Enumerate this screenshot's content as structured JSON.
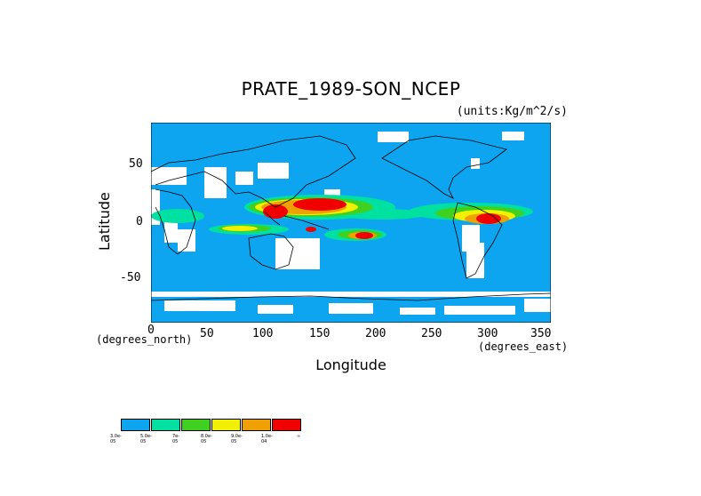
{
  "title": "PRATE_1989-SON_NCEP",
  "units": "(units:Kg/m^2/s)",
  "y_axis": {
    "label": "Latitude",
    "ticks": [
      "50",
      "0",
      "-50"
    ]
  },
  "x_axis": {
    "label": "Longitude",
    "ticks": [
      "0",
      "50",
      "100",
      "150",
      "200",
      "250",
      "300",
      "350"
    ],
    "units_left": "(degrees_north)",
    "units_right": "(degrees_east)"
  },
  "colors": {
    "ocean": "#0ea5f0",
    "teal": "#00e0a0",
    "green": "#40d020",
    "yellow": "#f0f000",
    "orange": "#f0a000",
    "red": "#f00000",
    "white": "#ffffff"
  },
  "legend": {
    "colors": [
      "#0ea5f0",
      "#00e0a0",
      "#40d020",
      "#f0f000",
      "#f0a000",
      "#f00000"
    ],
    "labels": [
      "3.0e-05",
      "5.0e-05",
      "7e-05",
      "8.0e-05",
      "9.0e-05",
      "1.0e-04",
      "∞"
    ]
  }
}
